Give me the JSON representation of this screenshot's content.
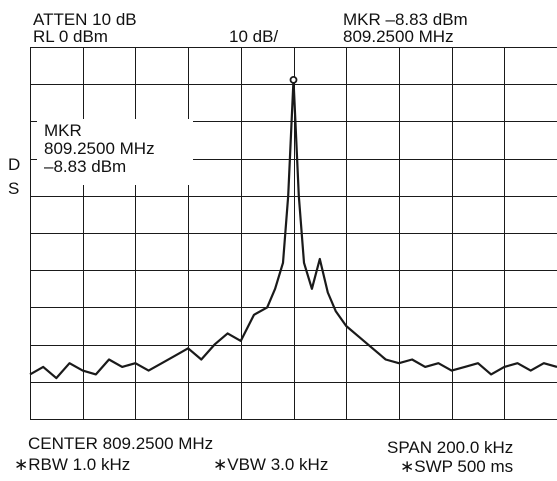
{
  "header": {
    "atten": "ATTEN 10 dB",
    "rl": "RL 0 dBm",
    "scale": "10 dB/",
    "marker_line1": "MKR –8.83 dBm",
    "marker_line2": "809.2500 MHz"
  },
  "side": {
    "d": "D",
    "s": "S"
  },
  "marker_box": {
    "line1": "MKR",
    "line2": "809.2500 MHz",
    "line3": "–8.83 dBm"
  },
  "footer": {
    "center": "CENTER 809.2500 MHz",
    "span": "SPAN 200.0 kHz",
    "rbw": "∗RBW 1.0 kHz",
    "vbw": "∗VBW 3.0 kHz",
    "swp": "∗SWP 500 ms"
  },
  "colors": {
    "trace": "#1a1a1a",
    "grid": "#1a1a1a",
    "background": "#ffffff"
  },
  "chart_data": {
    "type": "line",
    "title": "",
    "xlabel": "",
    "ylabel": "",
    "xlim": [
      809.15,
      809.35
    ],
    "ylim": [
      -100,
      0
    ],
    "grid": true,
    "x_unit": "MHz",
    "y_unit": "dBm",
    "marker": {
      "x": 809.25,
      "y": -8.83
    },
    "series": [
      {
        "x": [
          809.15,
          809.155,
          809.16,
          809.165,
          809.17,
          809.175,
          809.18,
          809.185,
          809.19,
          809.195,
          809.2,
          809.205,
          809.21,
          809.215,
          809.22,
          809.225,
          809.23,
          809.235,
          809.24,
          809.243,
          809.246,
          809.248,
          809.25,
          809.252,
          809.254,
          809.257,
          809.26,
          809.263,
          809.266,
          809.27,
          809.275,
          809.28,
          809.285,
          809.29,
          809.295,
          809.3,
          809.305,
          809.31,
          809.315,
          809.32,
          809.325,
          809.33,
          809.335,
          809.34,
          809.345,
          809.35
        ],
        "y": [
          -88,
          -86,
          -89,
          -85,
          -87,
          -88,
          -84,
          -86,
          -85,
          -87,
          -85,
          -83,
          -81,
          -84,
          -80,
          -77,
          -79,
          -72,
          -70,
          -65,
          -58,
          -40,
          -8.83,
          -40,
          -58,
          -65,
          -57,
          -66,
          -71,
          -75,
          -78,
          -81,
          -84,
          -85,
          -84,
          -86,
          -85,
          -87,
          -86,
          -85,
          -88,
          -86,
          -85,
          -87,
          -85,
          -86
        ]
      }
    ]
  }
}
